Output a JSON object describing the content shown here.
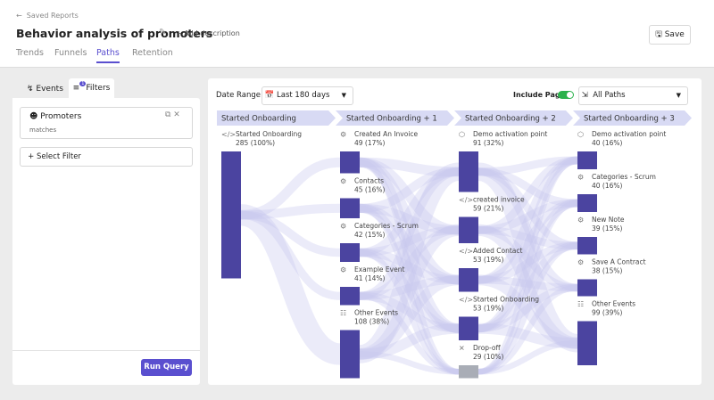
{
  "header": {
    "breadcrumb": "Saved Reports",
    "title": "Behavior analysis of promoters",
    "add_description": "Add description",
    "save": "Save",
    "tabs": [
      "Trends",
      "Funnels",
      "Paths",
      "Retention"
    ],
    "active_tab": 2
  },
  "left_panel": {
    "tabs": [
      "Events",
      "Filters"
    ],
    "filter_count": "1",
    "filter": {
      "name": "Promoters",
      "condition": "matches"
    },
    "select_filter": "Select Filter",
    "run_query": "Run Query"
  },
  "toolbar": {
    "date_range_label": "Date Range",
    "date_range": "Last 180 days",
    "include_pages": "Include Pages",
    "include_pages_on": true,
    "paths": "All Paths"
  },
  "columns": [
    {
      "title": "Started Onboarding",
      "nodes": [
        {
          "label": "Started Onboarding",
          "stats": "285 (100%)",
          "value": 285,
          "icon": "code"
        }
      ]
    },
    {
      "title": "Started Onboarding + 1",
      "nodes": [
        {
          "label": "Created An Invoice",
          "stats": "49 (17%)",
          "value": 49,
          "icon": "event"
        },
        {
          "label": "Contacts",
          "stats": "45 (16%)",
          "value": 45,
          "icon": "event"
        },
        {
          "label": "Categories - Scrum",
          "stats": "42 (15%)",
          "value": 42,
          "icon": "event"
        },
        {
          "label": "Example Event",
          "stats": "41 (14%)",
          "value": 41,
          "icon": "event"
        },
        {
          "label": "Other Events",
          "stats": "108 (38%)",
          "value": 108,
          "icon": "grid"
        }
      ]
    },
    {
      "title": "Started Onboarding + 2",
      "nodes": [
        {
          "label": "Demo activation point",
          "stats": "91 (32%)",
          "value": 91,
          "icon": "box"
        },
        {
          "label": "created invoice",
          "stats": "59 (21%)",
          "value": 59,
          "icon": "code"
        },
        {
          "label": "Added Contact",
          "stats": "53 (19%)",
          "value": 53,
          "icon": "code"
        },
        {
          "label": "Started Onboarding",
          "stats": "53 (19%)",
          "value": 53,
          "icon": "code"
        },
        {
          "label": "Drop-off",
          "stats": "29 (10%)",
          "value": 29,
          "icon": "dropoff"
        }
      ]
    },
    {
      "title": "Started Onboarding + 3",
      "nodes": [
        {
          "label": "Demo activation point",
          "stats": "40 (16%)",
          "value": 40,
          "icon": "box"
        },
        {
          "label": "Categories - Scrum",
          "stats": "40 (16%)",
          "value": 40,
          "icon": "event"
        },
        {
          "label": "New Note",
          "stats": "39 (15%)",
          "value": 39,
          "icon": "event"
        },
        {
          "label": "Save A Contract",
          "stats": "38 (15%)",
          "value": 38,
          "icon": "event"
        },
        {
          "label": "Other Events",
          "stats": "99 (39%)",
          "value": 99,
          "icon": "grid"
        }
      ]
    }
  ]
}
